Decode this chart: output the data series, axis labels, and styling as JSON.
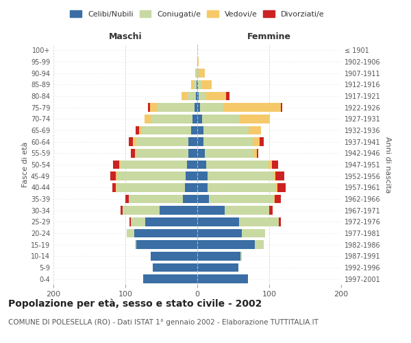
{
  "age_groups": [
    "0-4",
    "5-9",
    "10-14",
    "15-19",
    "20-24",
    "25-29",
    "30-34",
    "35-39",
    "40-44",
    "45-49",
    "50-54",
    "55-59",
    "60-64",
    "65-69",
    "70-74",
    "75-79",
    "80-84",
    "85-89",
    "90-94",
    "95-99",
    "100+"
  ],
  "birth_years": [
    "1997-2001",
    "1992-1996",
    "1987-1991",
    "1982-1986",
    "1977-1981",
    "1972-1976",
    "1967-1971",
    "1962-1966",
    "1957-1961",
    "1952-1956",
    "1947-1951",
    "1942-1946",
    "1937-1941",
    "1932-1936",
    "1927-1931",
    "1922-1926",
    "1917-1921",
    "1912-1916",
    "1907-1911",
    "1902-1906",
    "≤ 1901"
  ],
  "maschi": {
    "celibi": [
      75,
      62,
      65,
      85,
      88,
      72,
      52,
      20,
      17,
      16,
      14,
      12,
      12,
      9,
      7,
      4,
      2,
      1,
      0,
      0,
      0
    ],
    "coniugati": [
      0,
      0,
      0,
      2,
      10,
      20,
      52,
      75,
      95,
      95,
      93,
      73,
      73,
      68,
      58,
      52,
      12,
      5,
      2,
      0,
      0
    ],
    "vedovi": [
      0,
      0,
      0,
      0,
      0,
      0,
      0,
      0,
      1,
      2,
      2,
      2,
      5,
      4,
      8,
      10,
      8,
      3,
      1,
      0,
      0
    ],
    "divorziati": [
      0,
      0,
      0,
      0,
      0,
      2,
      3,
      5,
      5,
      8,
      8,
      5,
      5,
      5,
      0,
      3,
      0,
      0,
      0,
      0,
      0
    ]
  },
  "femmine": {
    "nubili": [
      70,
      57,
      60,
      80,
      62,
      58,
      38,
      16,
      14,
      14,
      12,
      10,
      9,
      9,
      7,
      4,
      2,
      1,
      0,
      0,
      0
    ],
    "coniugate": [
      0,
      0,
      2,
      12,
      32,
      55,
      62,
      90,
      95,
      93,
      87,
      68,
      68,
      62,
      52,
      32,
      10,
      5,
      2,
      0,
      0
    ],
    "vedove": [
      0,
      0,
      0,
      0,
      0,
      0,
      0,
      2,
      2,
      2,
      5,
      5,
      10,
      18,
      42,
      80,
      28,
      14,
      8,
      2,
      0
    ],
    "divorziate": [
      0,
      0,
      0,
      0,
      0,
      3,
      5,
      8,
      12,
      12,
      8,
      2,
      5,
      0,
      0,
      2,
      5,
      0,
      0,
      0,
      0
    ]
  },
  "colors": {
    "celibi": "#3a6ea5",
    "coniugati": "#c8d9a2",
    "vedovi": "#f5c96a",
    "divorziati": "#cc2222"
  },
  "xlim": 200,
  "title": "Popolazione per età, sesso e stato civile - 2002",
  "subtitle": "COMUNE DI POLESELLA (RO) - Dati ISTAT 1° gennaio 2002 - Elaborazione TUTTITALIA.IT",
  "ylabel_left": "Fasce di età",
  "ylabel_right": "Anni di nascita",
  "xlabel_left": "Maschi",
  "xlabel_right": "Femmine",
  "legend_labels": [
    "Celibi/Nubili",
    "Coniugati/e",
    "Vedovi/e",
    "Divorziati/e"
  ],
  "background_color": "#ffffff",
  "title_fontsize": 10,
  "subtitle_fontsize": 7.5
}
